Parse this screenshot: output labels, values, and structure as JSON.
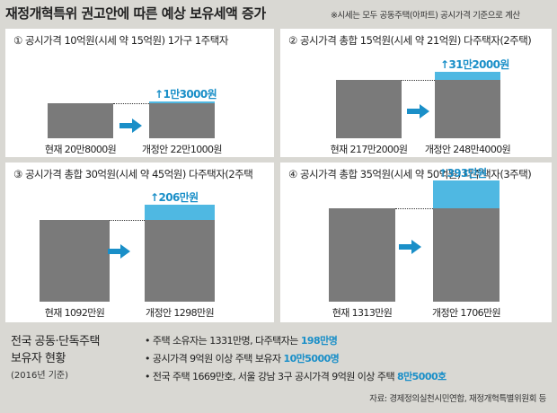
{
  "header": {
    "title": "재정개혁특위 권고안에 따른 예상 보유세액 증가",
    "note": "※시세는 모두 공동주택(아파트) 공시가격 기준으로 계산"
  },
  "chart_data": [
    {
      "type": "bar",
      "title": "① 공시가격 10억원(시세 약 15억원) 1가구 1주택자",
      "categories": [
        "현재",
        "개정안"
      ],
      "values": [
        208000,
        221000
      ],
      "increase": 13000,
      "labels": [
        "현재 20만8000원",
        "개정안 22만1000원"
      ],
      "increase_label": "1만3000원"
    },
    {
      "type": "bar",
      "title": "② 공시가격 총합 15억원(시세 약 21억원) 다주택자(2주택)",
      "categories": [
        "현재",
        "개정안"
      ],
      "values": [
        2172000,
        2484000
      ],
      "increase": 312000,
      "labels": [
        "현재 217만2000원",
        "개정안 248만4000원"
      ],
      "increase_label": "31만2000원"
    },
    {
      "type": "bar",
      "title": "③ 공시가격 총합 30억원(시세 약 45억원) 다주택자(2주택",
      "categories": [
        "현재",
        "개정안"
      ],
      "values": [
        10920000,
        12980000
      ],
      "increase": 2060000,
      "labels": [
        "현재 1092만원",
        "개정안 1298만원"
      ],
      "increase_label": "206만원"
    },
    {
      "type": "bar",
      "title": "④ 공시가격 총합 35억원(시세 약 50억원) 다주택자(3주택)",
      "categories": [
        "현재",
        "개정안"
      ],
      "values": [
        13130000,
        17060000
      ],
      "increase": 3930000,
      "labels": [
        "현재 1313만원",
        "개정안 1706만원"
      ],
      "increase_label": "393만원"
    }
  ],
  "footer": {
    "heading_line1": "전국 공동·단독주택",
    "heading_line2": "보유자 현황",
    "heading_sub": "(2016년 기준)",
    "bullets": [
      {
        "text": "• 주택 소유자는 1331만명, 다주택자는 ",
        "highlight": "198만명"
      },
      {
        "text": "• 공시가격 9억원 이상 주택 보유자 ",
        "highlight": "10만5000명"
      },
      {
        "text": "• 전국 주택 1669만호, 서울 강남 3구 공시가격 9억원 이상 주택 ",
        "highlight": "8만5000호"
      }
    ],
    "source": "자료: 경제정의실천시민연합, 재정개혁특별위원회 등"
  },
  "colors": {
    "base_bar": "#7a7a7a",
    "increase_bar": "#4fb8e2",
    "highlight_text": "#1a8fc8",
    "background": "#d9d8d3"
  }
}
